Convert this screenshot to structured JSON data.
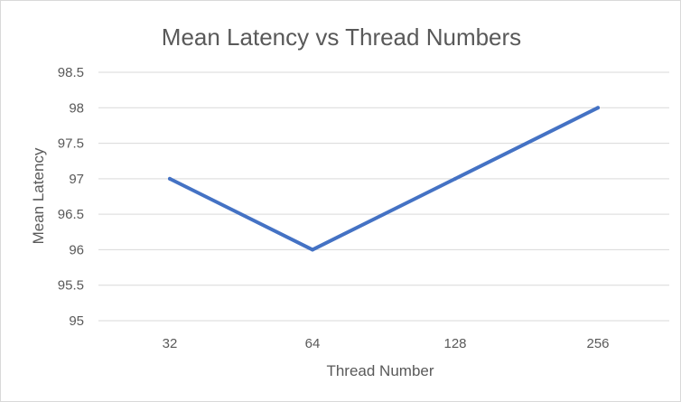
{
  "chart_data": {
    "type": "line",
    "title": "Mean Latency vs Thread Numbers",
    "xlabel": "Thread Number",
    "ylabel": "Mean Latency",
    "categories": [
      "32",
      "64",
      "128",
      "256"
    ],
    "series": [
      {
        "values": [
          97,
          96,
          97,
          98
        ]
      }
    ],
    "ylim": [
      95,
      98.5
    ],
    "yticks": [
      "95",
      "95.5",
      "96",
      "96.5",
      "97",
      "97.5",
      "98",
      "98.5"
    ],
    "grid": "horizontal",
    "legend": "none",
    "colors": {
      "series": "#4472c4",
      "grid": "#d9d9d9",
      "text": "#595959"
    }
  }
}
